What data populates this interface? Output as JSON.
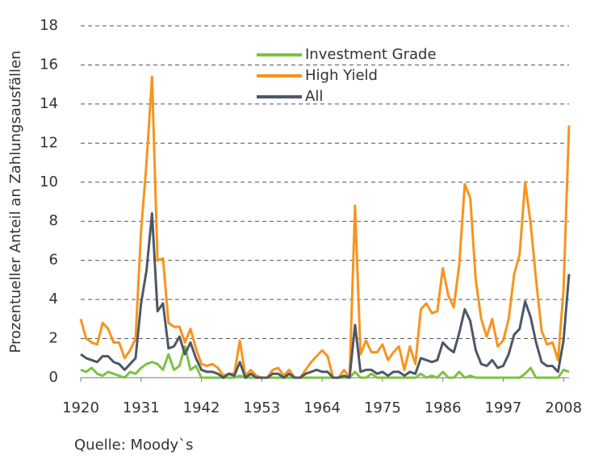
{
  "chart_data": {
    "type": "line",
    "y_label": "Prozentueller Anteil an Zahlungsausfällen",
    "annotation": "Quelle: Moody`s",
    "x": [
      1920,
      1921,
      1922,
      1923,
      1924,
      1925,
      1926,
      1927,
      1928,
      1929,
      1930,
      1931,
      1932,
      1933,
      1934,
      1935,
      1936,
      1937,
      1938,
      1939,
      1940,
      1941,
      1942,
      1943,
      1944,
      1945,
      1946,
      1947,
      1948,
      1949,
      1950,
      1951,
      1952,
      1953,
      1954,
      1955,
      1956,
      1957,
      1958,
      1959,
      1960,
      1961,
      1962,
      1963,
      1964,
      1965,
      1966,
      1967,
      1968,
      1969,
      1970,
      1971,
      1972,
      1973,
      1974,
      1975,
      1976,
      1977,
      1978,
      1979,
      1980,
      1981,
      1982,
      1983,
      1984,
      1985,
      1986,
      1987,
      1988,
      1989,
      1990,
      1991,
      1992,
      1993,
      1994,
      1995,
      1996,
      1997,
      1998,
      1999,
      2000,
      2001,
      2002,
      2003,
      2004,
      2005,
      2006,
      2007,
      2008,
      2009
    ],
    "series": [
      {
        "name": "Investment Grade",
        "color": "#7dc242",
        "values": [
          0.4,
          0.3,
          0.5,
          0.2,
          0.1,
          0.3,
          0.2,
          0.1,
          0,
          0.3,
          0.2,
          0.5,
          0.7,
          0.8,
          0.7,
          0.4,
          1.2,
          0.4,
          0.6,
          1.6,
          0.4,
          0.6,
          0,
          0,
          0,
          0,
          0,
          0,
          0,
          0.1,
          0,
          0,
          0,
          0,
          0,
          0,
          0,
          0,
          0,
          0,
          0,
          0,
          0,
          0,
          0,
          0,
          0,
          0,
          0,
          0,
          0.3,
          0,
          0,
          0.2,
          0,
          0,
          0,
          0,
          0,
          0,
          0,
          0,
          0.2,
          0,
          0.1,
          0,
          0.3,
          0,
          0,
          0.3,
          0,
          0.1,
          0,
          0,
          0,
          0,
          0,
          0,
          0,
          0,
          0,
          0.2,
          0.5,
          0,
          0,
          0,
          0,
          0,
          0.4,
          0.3
        ]
      },
      {
        "name": "High Yield",
        "color": "#f7941d",
        "values": [
          3.0,
          2.0,
          1.8,
          1.7,
          2.8,
          2.5,
          1.8,
          1.8,
          1.0,
          1.4,
          2.0,
          7.5,
          11.0,
          15.4,
          6.0,
          6.1,
          2.8,
          2.6,
          2.6,
          1.8,
          2.5,
          1.5,
          0.7,
          0.6,
          0.7,
          0.5,
          0.1,
          0.2,
          0.2,
          1.9,
          0.1,
          0.4,
          0.1,
          0,
          0,
          0.4,
          0.5,
          0.1,
          0.4,
          0,
          0,
          0.4,
          0.8,
          1.1,
          1.4,
          1.1,
          0,
          0,
          0.4,
          0,
          8.8,
          1.2,
          1.9,
          1.3,
          1.3,
          1.7,
          0.9,
          1.3,
          1.6,
          0.4,
          1.6,
          0.7,
          3.5,
          3.8,
          3.3,
          3.4,
          5.6,
          4.2,
          3.6,
          5.8,
          9.9,
          9.2,
          5.0,
          3.0,
          2.1,
          3.0,
          1.6,
          1.9,
          3.0,
          5.3,
          6.3,
          10.0,
          7.9,
          5.0,
          2.4,
          1.7,
          1.8,
          0.9,
          4.5,
          12.9
        ]
      },
      {
        "name": "All",
        "color": "#4d5866",
        "values": [
          1.2,
          1.0,
          0.9,
          0.8,
          1.1,
          1.1,
          0.8,
          0.7,
          0.4,
          0.7,
          1.0,
          3.8,
          5.5,
          8.4,
          3.4,
          3.8,
          1.5,
          1.6,
          2.1,
          1.2,
          1.8,
          1.0,
          0.4,
          0.3,
          0.3,
          0.2,
          0,
          0.2,
          0.1,
          0.8,
          0,
          0.2,
          0,
          0,
          0,
          0.2,
          0.2,
          0,
          0.2,
          0,
          0,
          0.2,
          0.3,
          0.4,
          0.3,
          0.3,
          0,
          0,
          0.1,
          0,
          2.7,
          0.3,
          0.4,
          0.4,
          0.2,
          0.3,
          0.1,
          0.3,
          0.3,
          0.1,
          0.3,
          0.2,
          1.0,
          0.9,
          0.8,
          0.9,
          1.8,
          1.5,
          1.3,
          2.3,
          3.5,
          2.9,
          1.4,
          0.7,
          0.6,
          0.9,
          0.5,
          0.6,
          1.2,
          2.2,
          2.5,
          3.9,
          3.1,
          1.8,
          0.8,
          0.6,
          0.6,
          0.3,
          1.9,
          5.3
        ]
      }
    ],
    "xlim": [
      1920,
      2009
    ],
    "xticks": [
      1920,
      1931,
      1942,
      1953,
      1964,
      1975,
      1986,
      1997,
      2008
    ],
    "ylim": [
      0,
      18
    ],
    "yticks": [
      0,
      2,
      4,
      6,
      8,
      10,
      12,
      14,
      16,
      18
    ],
    "grid": true,
    "legend": "top"
  }
}
